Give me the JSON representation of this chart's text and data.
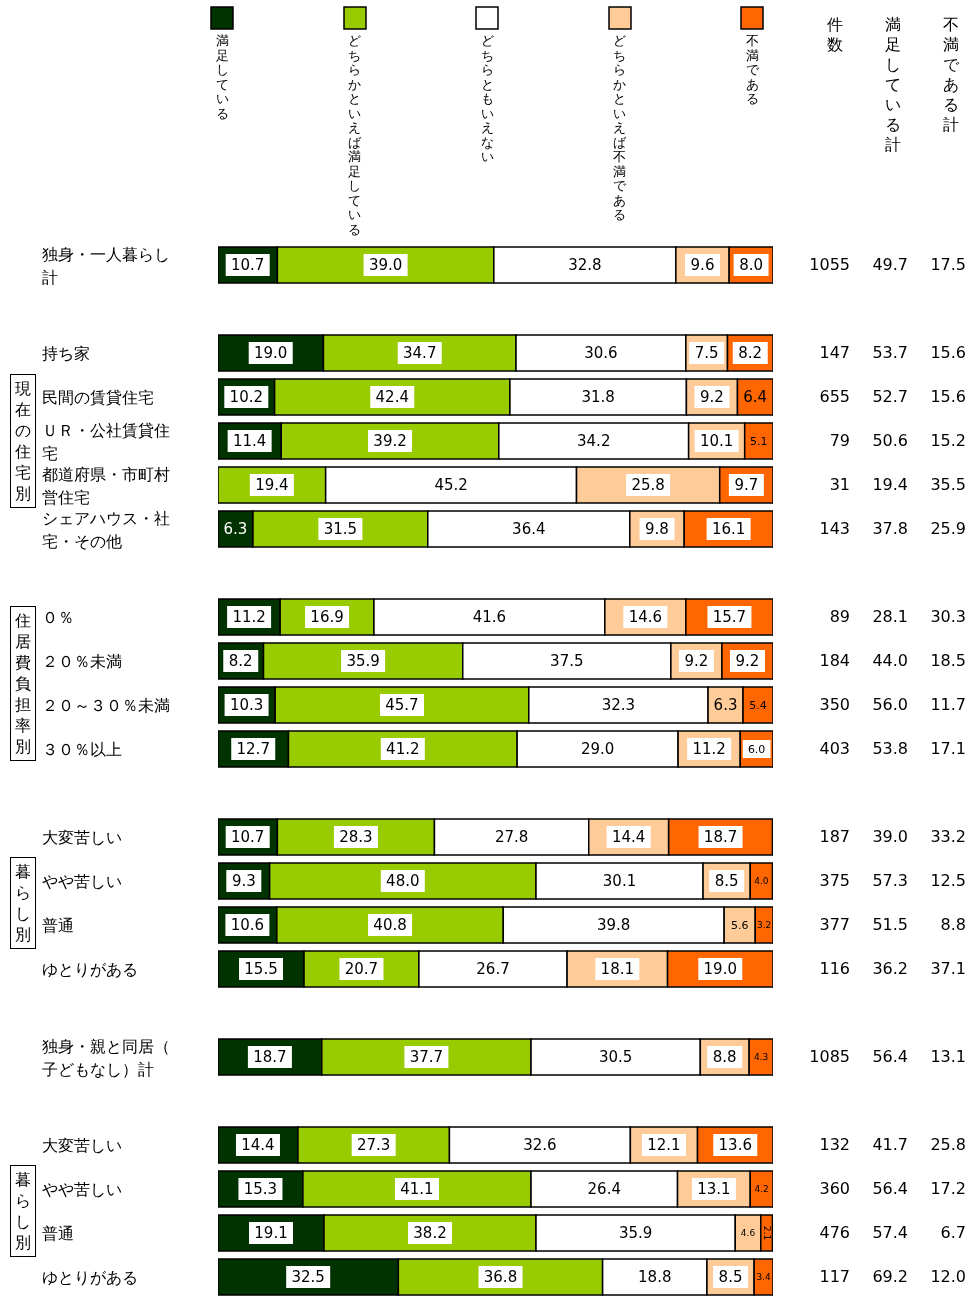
{
  "chart_data": {
    "type": "bar",
    "orientation": "horizontal",
    "stacked": true,
    "legend": "top",
    "tick_labels": "y",
    "xlim": [
      0,
      100
    ],
    "categories": [
      "独身・一人暮らし計",
      null,
      "持ち家",
      "民間の賃貸住宅",
      "ＵＲ・公社賃貸住宅",
      "都道府県・市町村営住宅",
      "シェアハウス・社宅・その他",
      null,
      "０％",
      "２０％未満",
      "２０～３０％未満",
      "３０％以上",
      null,
      "大変苦しい",
      "やや苦しい",
      "普通",
      "ゆとりがある",
      null,
      "独身・親と同居（子どもなし）計",
      null,
      "大変苦しい",
      "やや苦しい",
      "普通",
      "ゆとりがある"
    ],
    "series": [
      {
        "name": "満足している",
        "color": "#003300",
        "values": [
          10.7,
          null,
          19.0,
          10.2,
          11.4,
          0.0,
          6.3,
          null,
          11.2,
          8.2,
          10.3,
          12.7,
          null,
          10.7,
          9.3,
          10.6,
          15.5,
          null,
          18.7,
          null,
          14.4,
          15.3,
          19.1,
          32.5
        ],
        "value_labels": [
          "10.7",
          null,
          "19.0",
          "10.2",
          "11.4",
          null,
          "6.3",
          null,
          "11.2",
          "8.2",
          "10.3",
          "12.7",
          null,
          "10.7",
          "9.3",
          "10.6",
          "15.5",
          null,
          "18.7",
          null,
          "14.4",
          "15.3",
          "19.1",
          "32.5"
        ]
      },
      {
        "name": "どちらかといえば満足している",
        "color": "#99cc00",
        "values": [
          39.0,
          null,
          34.7,
          42.4,
          39.2,
          19.4,
          31.5,
          null,
          16.9,
          35.9,
          45.7,
          41.2,
          null,
          28.3,
          48.0,
          40.8,
          20.7,
          null,
          37.7,
          null,
          27.3,
          41.1,
          38.2,
          36.8
        ],
        "value_labels": [
          "39.0",
          null,
          "34.7",
          "42.4",
          "39.2",
          "19.4",
          "31.5",
          null,
          "16.9",
          "35.9",
          "45.7",
          "41.2",
          null,
          "28.3",
          "48.0",
          "40.8",
          "20.7",
          null,
          "37.7",
          null,
          "27.3",
          "41.1",
          "38.2",
          "36.8"
        ]
      },
      {
        "name": "どちらともいえない",
        "color": "#ffffff",
        "values": [
          32.8,
          null,
          30.6,
          31.8,
          34.2,
          45.2,
          36.4,
          null,
          41.6,
          37.5,
          32.3,
          29.0,
          null,
          27.8,
          30.1,
          39.8,
          26.7,
          null,
          30.5,
          null,
          32.6,
          26.4,
          35.9,
          18.8
        ],
        "value_labels": [
          "32.8",
          null,
          "30.6",
          "31.8",
          "34.2",
          "45.2",
          "36.4",
          null,
          "41.6",
          "37.5",
          "32.3",
          "29.0",
          null,
          "27.8",
          "30.1",
          "39.8",
          "26.7",
          null,
          "30.5",
          null,
          "32.6",
          "26.4",
          "35.9",
          "18.8"
        ]
      },
      {
        "name": "どちらかといえば不満である",
        "color": "#ffcc99",
        "values": [
          9.6,
          null,
          7.5,
          9.2,
          10.1,
          25.8,
          9.8,
          null,
          14.6,
          9.2,
          6.3,
          11.2,
          null,
          14.4,
          8.5,
          5.6,
          18.1,
          null,
          8.8,
          null,
          12.1,
          13.1,
          4.6,
          8.5
        ],
        "value_labels": [
          "9.6",
          null,
          "7.5",
          "9.2",
          "10.1",
          "25.8",
          "9.8",
          null,
          "14.6",
          "9.2",
          "6.3",
          "11.2",
          null,
          "14.4",
          "8.5",
          "5.6",
          "18.1",
          null,
          "8.8",
          null,
          "12.1",
          "13.1",
          "4.6",
          "8.5"
        ]
      },
      {
        "name": "不満である",
        "color": "#ff6600",
        "values": [
          8.0,
          null,
          8.2,
          6.4,
          5.1,
          9.7,
          16.1,
          null,
          15.7,
          9.2,
          5.4,
          6.0,
          null,
          18.7,
          4.0,
          3.2,
          19.0,
          null,
          4.3,
          null,
          13.6,
          4.2,
          2.1,
          3.4
        ],
        "value_labels": [
          "8.0",
          null,
          "8.2",
          "6.4",
          "5.1",
          "9.7",
          "16.1",
          null,
          "15.7",
          "9.2",
          "5.4",
          "6.0",
          null,
          "18.7",
          "4.0",
          "3.2",
          "19.0",
          null,
          "4.3",
          null,
          "13.6",
          "4.2",
          "2.1",
          "3.4"
        ]
      }
    ],
    "annotations": [
      "現在の住宅別",
      "住居費負担率別",
      "暮らし別",
      "暮らし別",
      "件数",
      "満足している計",
      "不満である計",
      "1055",
      "49.7",
      "17.5",
      "147",
      "53.7",
      "15.6",
      "655",
      "52.7",
      "15.6",
      "79",
      "50.6",
      "15.2",
      "31",
      "19.4",
      "35.5",
      "143",
      "37.8",
      "25.9",
      "89",
      "28.1",
      "30.3",
      "184",
      "44.0",
      "18.5",
      "350",
      "56.0",
      "11.7",
      "403",
      "53.8",
      "17.1",
      "187",
      "39.0",
      "33.2",
      "375",
      "57.3",
      "12.5",
      "377",
      "51.5",
      "8.8",
      "116",
      "36.2",
      "37.1",
      "1085",
      "56.4",
      "13.1",
      "132",
      "41.7",
      "25.8",
      "360",
      "56.4",
      "17.2",
      "476",
      "57.4",
      "6.7",
      "117",
      "69.2",
      "12.0"
    ]
  }
}
